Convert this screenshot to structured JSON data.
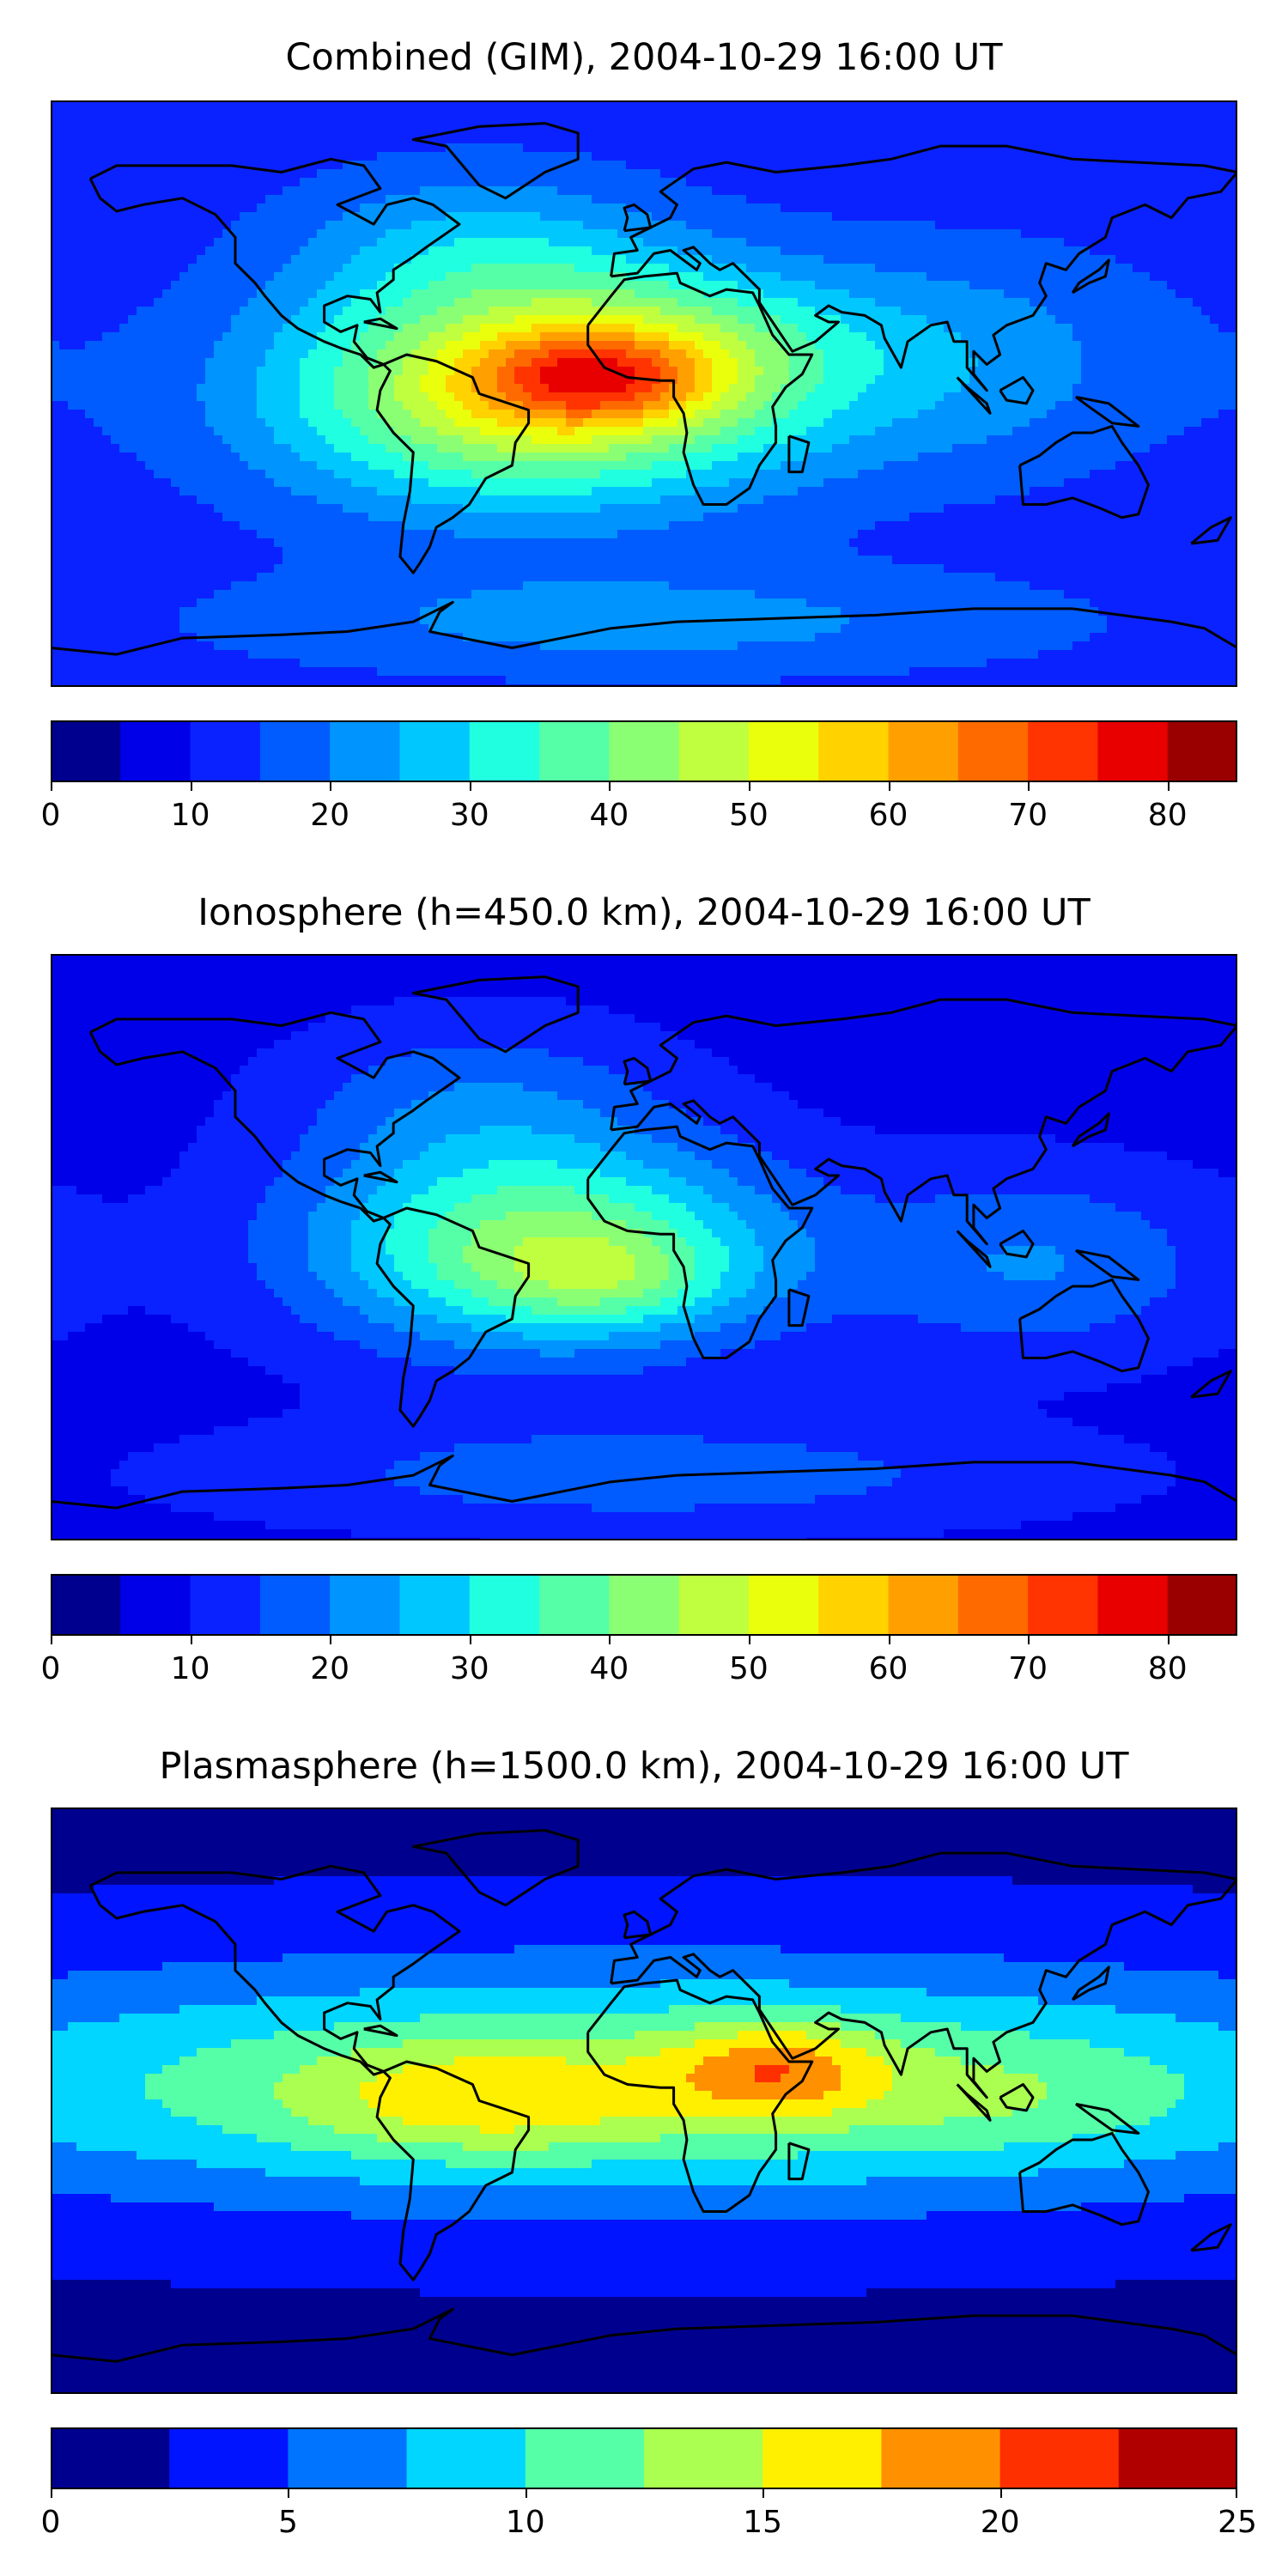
{
  "colors": {
    "scale10": [
      "#00008f",
      "#0000e8",
      "#0a22ff",
      "#005cff",
      "#0094ff",
      "#00c8ff",
      "#20ffe0",
      "#55ffa8",
      "#8aff74",
      "#bfff3f",
      "#eaff0c",
      "#ffd200",
      "#ffa000",
      "#ff6a00",
      "#ff3400",
      "#e80000",
      "#9a0000"
    ],
    "scale5": [
      "#00008f",
      "#0014ff",
      "#0074ff",
      "#00d6ff",
      "#55ffa8",
      "#aaff50",
      "#fff000",
      "#ff9000",
      "#ff3000",
      "#b00000"
    ],
    "coastline": "#000000"
  },
  "chart_data": [
    {
      "type": "heatmap",
      "name": "combined-gim",
      "title": "Combined (GIM), 2004-10-29 16:00 UT",
      "xlim": [
        -180,
        180
      ],
      "ylim": [
        -90,
        90
      ],
      "colorbar": {
        "levels": [
          0,
          5,
          10,
          15,
          20,
          25,
          30,
          35,
          40,
          45,
          50,
          55,
          60,
          65,
          70,
          75,
          80,
          85
        ],
        "tick_values": [
          0,
          10,
          20,
          30,
          40,
          50,
          60,
          70,
          80
        ],
        "tick_labels": [
          "0",
          "10",
          "20",
          "30",
          "40",
          "50",
          "60",
          "70",
          "80"
        ],
        "range": [
          0,
          85
        ]
      },
      "field": {
        "background": 12,
        "blobs": [
          {
            "lon": -35,
            "lat": 0,
            "slon": 55,
            "slat": 24,
            "amp": 40
          },
          {
            "lon": -15,
            "lat": 5,
            "slon": 25,
            "slat": 10,
            "amp": 22
          },
          {
            "lon": 15,
            "lat": 15,
            "slon": 40,
            "slat": 18,
            "amp": 12
          },
          {
            "lon": 100,
            "lat": 10,
            "slon": 45,
            "slat": 25,
            "amp": 10
          },
          {
            "lon": 0,
            "lat": -70,
            "slon": 90,
            "slat": 12,
            "amp": 10
          },
          {
            "lon": -50,
            "lat": 45,
            "slon": 40,
            "slat": 18,
            "amp": 12
          }
        ]
      }
    },
    {
      "type": "heatmap",
      "name": "ionosphere",
      "title": "Ionosphere  (h=450.0 km), 2004-10-29 16:00 UT",
      "xlim": [
        -180,
        180
      ],
      "ylim": [
        -90,
        90
      ],
      "colorbar": {
        "levels": [
          0,
          5,
          10,
          15,
          20,
          25,
          30,
          35,
          40,
          45,
          50,
          55,
          60,
          65,
          70,
          75,
          80,
          85
        ],
        "tick_values": [
          0,
          10,
          20,
          30,
          40,
          50,
          60,
          70,
          80
        ],
        "tick_labels": [
          "0",
          "10",
          "20",
          "30",
          "40",
          "50",
          "60",
          "70",
          "80"
        ],
        "range": [
          0,
          85
        ]
      },
      "field": {
        "background": 8,
        "blobs": [
          {
            "lon": -30,
            "lat": 0,
            "slon": 50,
            "slat": 22,
            "amp": 34
          },
          {
            "lon": -10,
            "lat": -10,
            "slon": 25,
            "slat": 10,
            "amp": 10
          },
          {
            "lon": 120,
            "lat": -5,
            "slon": 40,
            "slat": 20,
            "amp": 12
          },
          {
            "lon": 0,
            "lat": -70,
            "slon": 90,
            "slat": 12,
            "amp": 10
          },
          {
            "lon": -50,
            "lat": 45,
            "slon": 40,
            "slat": 18,
            "amp": 10
          }
        ]
      }
    },
    {
      "type": "heatmap",
      "name": "plasmasphere",
      "title": "Plasmasphere (h=1500.0 km), 2004-10-29 16:00 UT",
      "xlim": [
        -180,
        180
      ],
      "ylim": [
        -90,
        90
      ],
      "colorbar": {
        "levels": [
          0,
          2.5,
          5,
          7.5,
          10,
          12.5,
          15,
          17.5,
          20,
          22.5,
          25
        ],
        "tick_values": [
          0,
          5,
          10,
          15,
          20,
          25
        ],
        "tick_labels": [
          "0",
          "5",
          "10",
          "15",
          "20",
          "25"
        ],
        "range": [
          0,
          25
        ]
      },
      "field": {
        "background": 2,
        "blobs": [
          {
            "lon": 0,
            "lat": 5,
            "slon": 180,
            "slat": 26,
            "amp": 11
          },
          {
            "lon": -50,
            "lat": 0,
            "slon": 40,
            "slat": 12,
            "amp": 5
          },
          {
            "lon": 40,
            "lat": 10,
            "slon": 22,
            "slat": 10,
            "amp": 7
          },
          {
            "lon": 110,
            "lat": 0,
            "slon": 40,
            "slat": 12,
            "amp": 2
          }
        ]
      }
    }
  ]
}
